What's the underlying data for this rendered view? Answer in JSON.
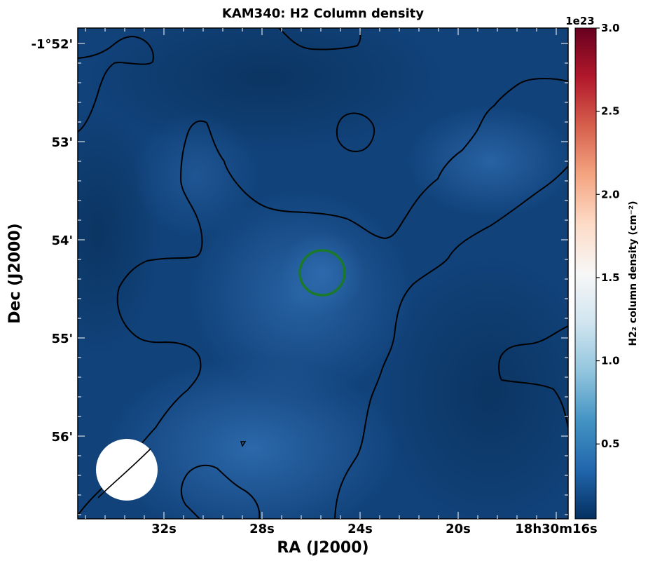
{
  "chart_data": {
    "type": "heatmap",
    "title": "KAM340: H2 Column density",
    "xlabel": "RA (J2000)",
    "ylabel": "Dec (J2000)",
    "x_ticks": [
      {
        "label": "32s"
      },
      {
        "label": "28s"
      },
      {
        "label": "24s"
      },
      {
        "label": "20s"
      },
      {
        "label": "18h30m16s"
      }
    ],
    "y_ticks": [
      {
        "label": "-1°52'"
      },
      {
        "label": "53'"
      },
      {
        "label": "54'"
      },
      {
        "label": "55'"
      },
      {
        "label": "56'"
      }
    ],
    "colorbar": {
      "label": "H2₂ column density (cm⁻²)",
      "offset_text": "1e23",
      "range": [
        0.05,
        3.0
      ],
      "ticks": [
        {
          "label": "0.5",
          "value": 0.5
        },
        {
          "label": "1.0",
          "value": 1.0
        },
        {
          "label": "1.5",
          "value": 1.5
        },
        {
          "label": "2.0",
          "value": 2.0
        },
        {
          "label": "2.5",
          "value": 2.5
        },
        {
          "label": "3.0",
          "value": 3.0
        }
      ],
      "colormap": "RdBu_r"
    },
    "field_value_range": [
      0.1,
      0.45
    ],
    "annotations": {
      "green_circle": "source marker",
      "white_circle": "beam size"
    },
    "colors": {
      "background_dark": "#0c3a6d",
      "background_light": "#2c6aae",
      "contour": "#000000",
      "marker_circle": "#1a7a2a",
      "beam": "#ffffff"
    }
  }
}
